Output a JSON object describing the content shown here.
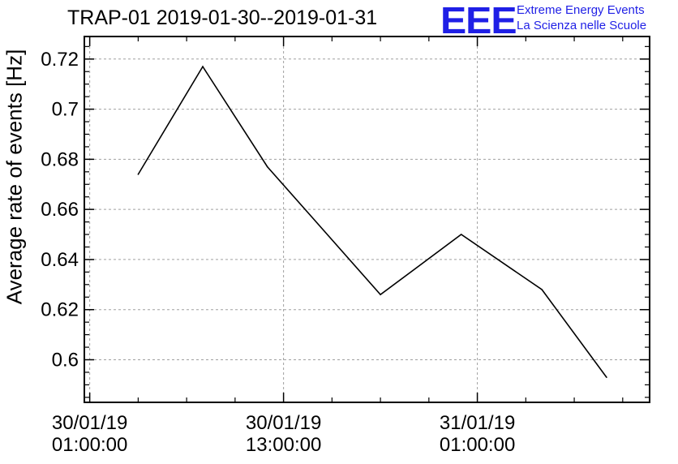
{
  "header": {
    "title": "TRAP-01 2019-01-30--2019-01-31",
    "logo_mark": "EEE",
    "logo_line1": "Extreme Energy Events",
    "logo_line2": "La Scienza nelle Scuole",
    "logo_color": "#1f1fe6"
  },
  "chart_data": {
    "type": "line",
    "title": "TRAP-01 2019-01-30--2019-01-31",
    "xlabel": "",
    "ylabel": "Average rate of events [Hz]",
    "x_ticks": [
      {
        "line1": "30/01/19",
        "line2": "01:00:00"
      },
      {
        "line1": "30/01/19",
        "line2": "13:00:00"
      },
      {
        "line1": "31/01/19",
        "line2": "01:00:00"
      }
    ],
    "x_tick_times": [
      "2019-01-30 01:00:00",
      "2019-01-30 13:00:00",
      "2019-01-31 01:00:00"
    ],
    "y_ticks": [
      "0.6",
      "0.62",
      "0.64",
      "0.66",
      "0.68",
      "0.7",
      "0.72"
    ],
    "ylim": [
      0.583,
      0.729
    ],
    "xlim": [
      "2019-01-30 00:40:00",
      "2019-01-31 11:40:00"
    ],
    "grid": true,
    "series": [
      {
        "values": [
          {
            "x": "2019-01-30 04:00:00",
            "y": 0.674
          },
          {
            "x": "2019-01-30 08:00:00",
            "y": 0.717
          },
          {
            "x": "2019-01-30 12:00:00",
            "y": 0.677
          },
          {
            "x": "2019-01-30 19:00:00",
            "y": 0.626
          },
          {
            "x": "2019-01-31 00:00:00",
            "y": 0.65
          },
          {
            "x": "2019-01-31 05:00:00",
            "y": 0.628
          },
          {
            "x": "2019-01-31 09:00:00",
            "y": 0.593
          }
        ]
      }
    ]
  }
}
